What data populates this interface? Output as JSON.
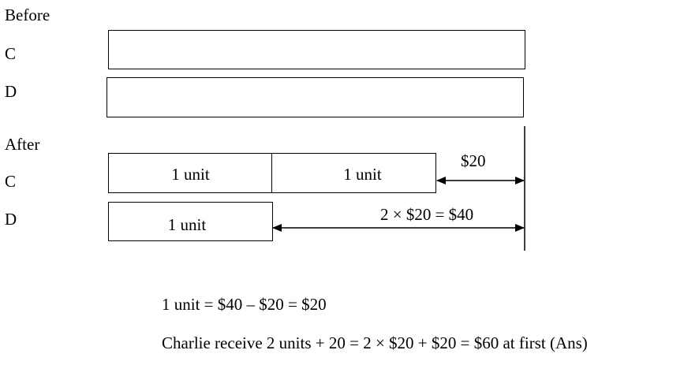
{
  "before": {
    "heading": "Before",
    "rows": [
      {
        "label": "C"
      },
      {
        "label": "D"
      }
    ]
  },
  "after": {
    "heading": "After",
    "c": {
      "label": "C",
      "units": [
        "1 unit",
        "1 unit"
      ],
      "extra": "$20"
    },
    "d": {
      "label": "D",
      "units": [
        "1 unit"
      ],
      "extra": "2 × $20 = $40"
    }
  },
  "solution": {
    "line1": "1 unit = $40 – $20 = $20",
    "line2": "Charlie receive 2 units + 20 = 2 × $20 + $20 = $60 at first  (Ans)"
  }
}
